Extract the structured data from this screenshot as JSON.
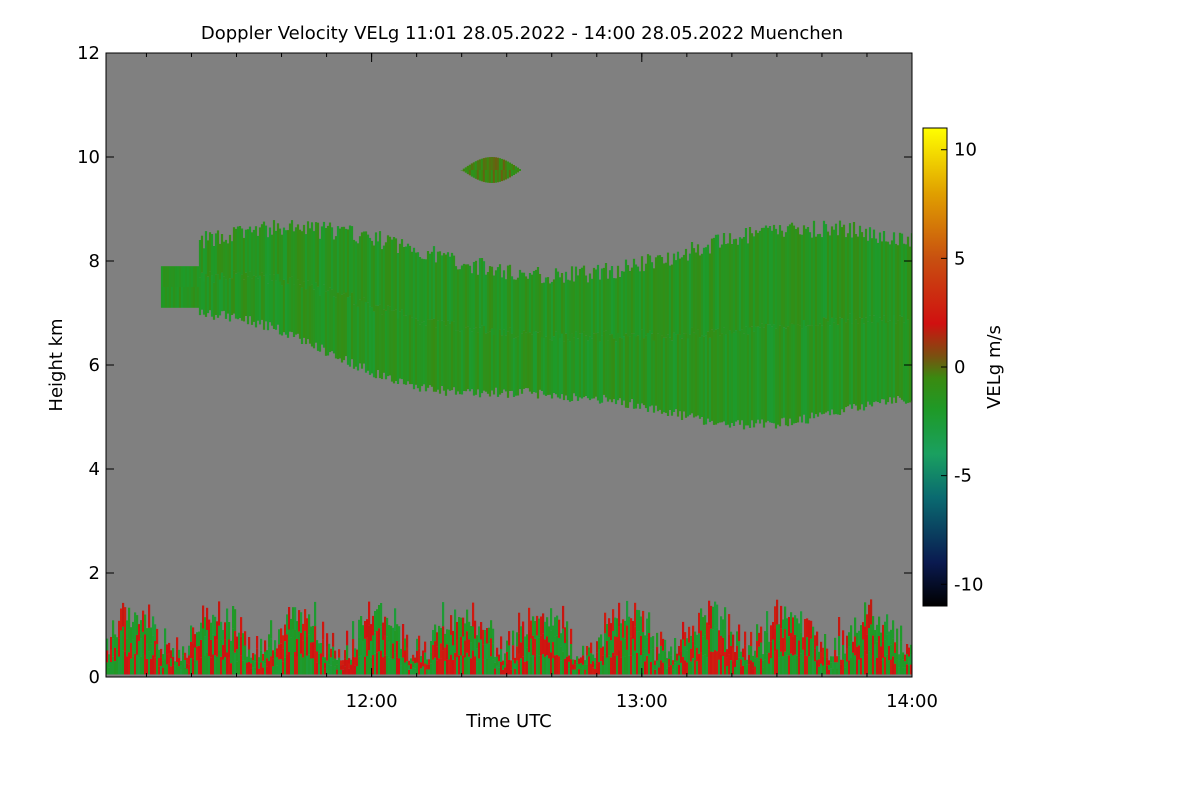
{
  "chart_data": {
    "type": "heatmap",
    "title": "Doppler Velocity VELg   11:01 28.05.2022 - 14:00 28.05.2022 Muenchen",
    "xlabel": "Time UTC",
    "ylabel": "Height km",
    "colorbar_label": "VELg m/s",
    "xlim": [
      11.017,
      14.0
    ],
    "ylim": [
      0,
      12
    ],
    "clim": [
      -11,
      11
    ],
    "x_ticks": [
      {
        "value": 12.0,
        "label": "12:00"
      },
      {
        "value": 13.0,
        "label": "13:00"
      },
      {
        "value": 14.0,
        "label": "14:00"
      }
    ],
    "y_ticks": [
      {
        "value": 0,
        "label": "0"
      },
      {
        "value": 2,
        "label": "2"
      },
      {
        "value": 4,
        "label": "4"
      },
      {
        "value": 6,
        "label": "6"
      },
      {
        "value": 8,
        "label": "8"
      },
      {
        "value": 10,
        "label": "10"
      },
      {
        "value": 12,
        "label": "12"
      }
    ],
    "colorbar_ticks": [
      {
        "value": 10,
        "label": "10"
      },
      {
        "value": 5,
        "label": "5"
      },
      {
        "value": 0,
        "label": "0"
      },
      {
        "value": -5,
        "label": "-5"
      },
      {
        "value": -10,
        "label": "-10"
      }
    ],
    "background_color": "#808080",
    "colormap": [
      {
        "value": -11,
        "color": "#000000"
      },
      {
        "value": -9,
        "color": "#0a1a50"
      },
      {
        "value": -6,
        "color": "#0a6a70"
      },
      {
        "value": -4,
        "color": "#1aa060"
      },
      {
        "value": -2,
        "color": "#1e9a28"
      },
      {
        "value": -0.5,
        "color": "#3a8a10"
      },
      {
        "value": 0.5,
        "color": "#7a5010"
      },
      {
        "value": 2,
        "color": "#d01010"
      },
      {
        "value": 5,
        "color": "#c85010"
      },
      {
        "value": 8,
        "color": "#e0a000"
      },
      {
        "value": 11,
        "color": "#ffff00"
      }
    ],
    "regions": [
      {
        "name": "upper-cloud-layer",
        "time_start": 11.22,
        "time_end": 14.0,
        "height_bottom_km": 4.7,
        "height_top_km": 9.1,
        "mean_velocity": -1.5
      },
      {
        "name": "small-cloud-10km",
        "time_start": 12.33,
        "time_end": 12.55,
        "height_bottom_km": 9.5,
        "height_top_km": 10.0,
        "mean_velocity": -0.5
      },
      {
        "name": "boundary-layer-echoes",
        "time_start": 11.017,
        "time_end": 14.0,
        "height_bottom_km": 0.0,
        "height_top_km": 1.8,
        "mean_velocity": 0.0
      }
    ]
  }
}
